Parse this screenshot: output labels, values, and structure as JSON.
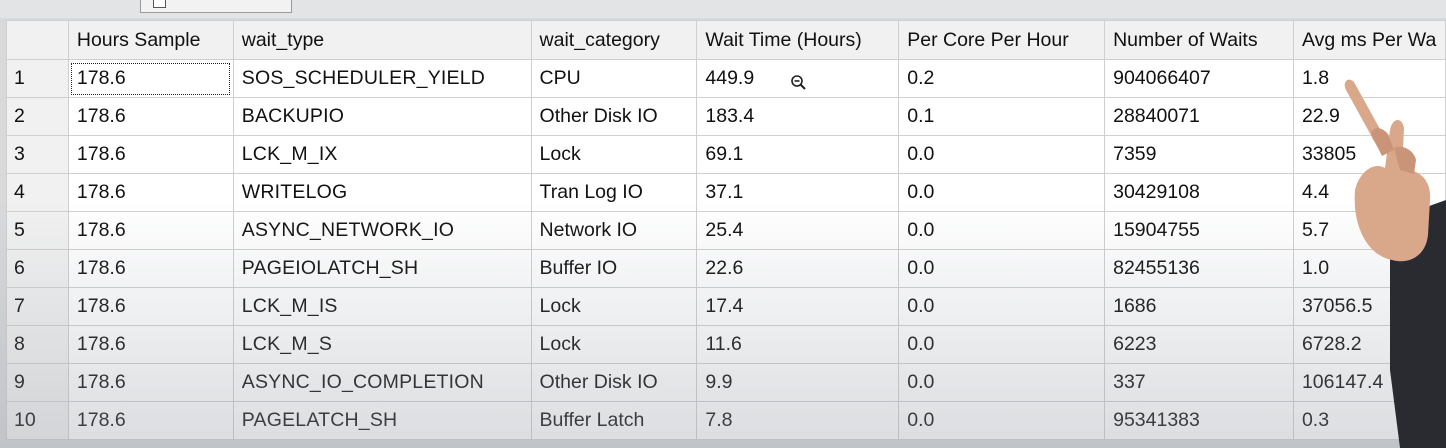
{
  "grid": {
    "columns": [
      "",
      "Hours Sample",
      "wait_type",
      "wait_category",
      "Wait Time (Hours)",
      "Per Core Per Hour",
      "Number of Waits",
      "Avg ms Per Wa"
    ],
    "rows": [
      {
        "idx": "1",
        "hours": "178.6",
        "type": "SOS_SCHEDULER_YIELD",
        "category": "CPU",
        "wait_time": "449.9",
        "per_core": "0.2",
        "num_waits": "904066407",
        "avg_ms": "1.8"
      },
      {
        "idx": "2",
        "hours": "178.6",
        "type": "BACKUPIO",
        "category": "Other Disk IO",
        "wait_time": "183.4",
        "per_core": "0.1",
        "num_waits": "28840071",
        "avg_ms": "22.9"
      },
      {
        "idx": "3",
        "hours": "178.6",
        "type": "LCK_M_IX",
        "category": "Lock",
        "wait_time": "69.1",
        "per_core": "0.0",
        "num_waits": "7359",
        "avg_ms": "33805"
      },
      {
        "idx": "4",
        "hours": "178.6",
        "type": "WRITELOG",
        "category": "Tran Log IO",
        "wait_time": "37.1",
        "per_core": "0.0",
        "num_waits": "30429108",
        "avg_ms": "4.4"
      },
      {
        "idx": "5",
        "hours": "178.6",
        "type": "ASYNC_NETWORK_IO",
        "category": "Network IO",
        "wait_time": "25.4",
        "per_core": "0.0",
        "num_waits": "15904755",
        "avg_ms": "5.7"
      },
      {
        "idx": "6",
        "hours": "178.6",
        "type": "PAGEIOLATCH_SH",
        "category": "Buffer IO",
        "wait_time": "22.6",
        "per_core": "0.0",
        "num_waits": "82455136",
        "avg_ms": "1.0"
      },
      {
        "idx": "7",
        "hours": "178.6",
        "type": "LCK_M_IS",
        "category": "Lock",
        "wait_time": "17.4",
        "per_core": "0.0",
        "num_waits": "1686",
        "avg_ms": "37056.5"
      },
      {
        "idx": "8",
        "hours": "178.6",
        "type": "LCK_M_S",
        "category": "Lock",
        "wait_time": "11.6",
        "per_core": "0.0",
        "num_waits": "6223",
        "avg_ms": "6728.2"
      },
      {
        "idx": "9",
        "hours": "178.6",
        "type": "ASYNC_IO_COMPLETION",
        "category": "Other Disk IO",
        "wait_time": "9.9",
        "per_core": "0.0",
        "num_waits": "337",
        "avg_ms": "106147.4"
      },
      {
        "idx": "10",
        "hours": "178.6",
        "type": "PAGELATCH_SH",
        "category": "Buffer Latch",
        "wait_time": "7.8",
        "per_core": "0.0",
        "num_waits": "95341383",
        "avg_ms": "0.3"
      }
    ]
  },
  "icons": {
    "cursor": "zoom-out-magnifier-icon",
    "tab_checkbox": "checkbox-icon"
  },
  "colors": {
    "grid_background": "#ffffff",
    "header_background": "#f1f1f1",
    "gridline": "#cfcfcf",
    "text": "#111111"
  }
}
